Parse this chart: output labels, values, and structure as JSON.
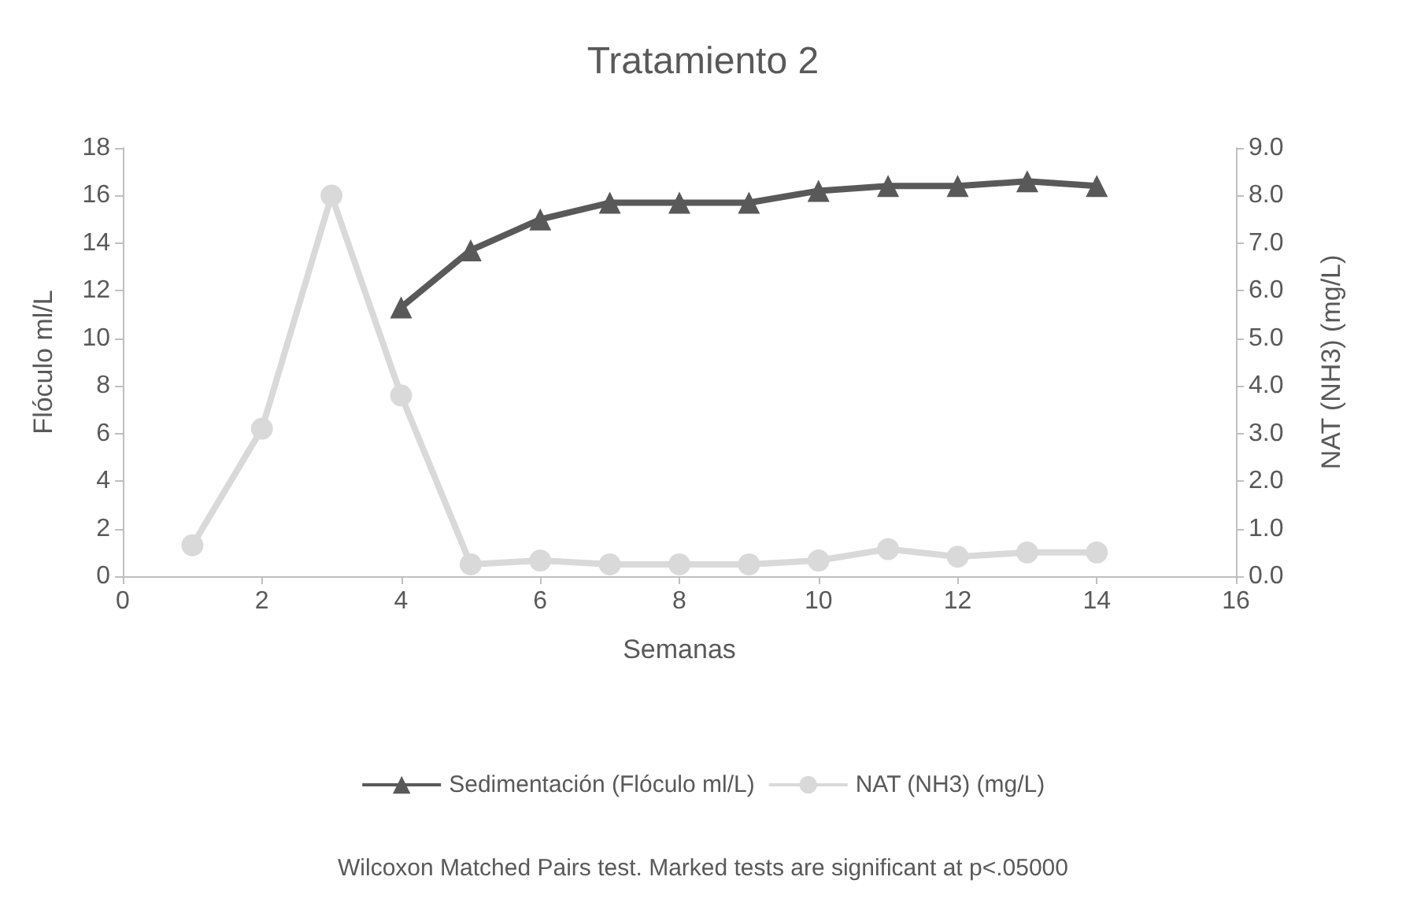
{
  "chart_data": {
    "type": "line",
    "title": "Tratamiento 2",
    "xlabel": "Semanas",
    "ylabel": "Flóculo ml/L",
    "y2label": "NAT (NH3) (mg/L)",
    "x": [
      1,
      2,
      3,
      4,
      5,
      6,
      7,
      8,
      9,
      10,
      11,
      12,
      13,
      14
    ],
    "series": [
      {
        "name": "Sedimentación (Flóculo ml/L)",
        "color": "#595959",
        "marker": "triangle",
        "values": [
          null,
          null,
          null,
          11.3,
          13.7,
          15.0,
          15.7,
          15.7,
          15.7,
          16.2,
          16.4,
          16.4,
          16.6,
          16.4
        ]
      },
      {
        "name": "NAT (NH3) (mg/L)",
        "color": "#d9d9d9",
        "marker": "circle",
        "axis": "y2",
        "values": [
          0.65,
          3.1,
          8.0,
          3.8,
          0.25,
          0.33,
          0.25,
          0.25,
          0.25,
          0.33,
          0.57,
          0.41,
          0.5,
          0.5
        ]
      }
    ],
    "xlim": [
      0,
      16
    ],
    "xticks": [
      0,
      2,
      4,
      6,
      8,
      10,
      12,
      14,
      16
    ],
    "ylim": [
      0,
      18
    ],
    "yticks": [
      0,
      2,
      4,
      6,
      8,
      10,
      12,
      14,
      16,
      18
    ],
    "y2lim": [
      0,
      9
    ],
    "y2ticks": [
      {
        "value": 0,
        "label": "0.0"
      },
      {
        "value": 1,
        "label": "1.0"
      },
      {
        "value": 2,
        "label": "2.0"
      },
      {
        "value": 3,
        "label": "3.0"
      },
      {
        "value": 4,
        "label": "4.0"
      },
      {
        "value": 5,
        "label": "5.0"
      },
      {
        "value": 6,
        "label": "6.0"
      },
      {
        "value": 7,
        "label": "7.0"
      },
      {
        "value": 8,
        "label": "8.0"
      },
      {
        "value": 9,
        "label": "9.0"
      }
    ],
    "grid": false,
    "legend": "bottom",
    "annotations": [
      "Wilcoxon Matched Pairs test. Marked tests are significant at p<.05000"
    ]
  }
}
